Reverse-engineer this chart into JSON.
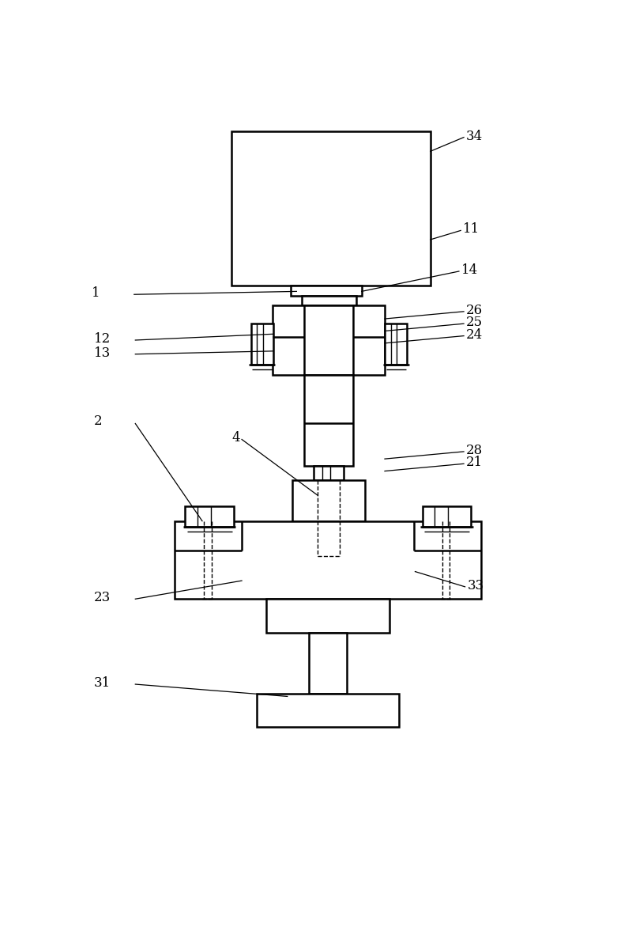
{
  "bg_color": "#ffffff",
  "line_color": "#000000",
  "lw_main": 1.8,
  "lw_thin": 1.0,
  "lw_leader": 0.9,
  "fig_width": 8.0,
  "fig_height": 11.77,
  "label_fontsize": 12
}
